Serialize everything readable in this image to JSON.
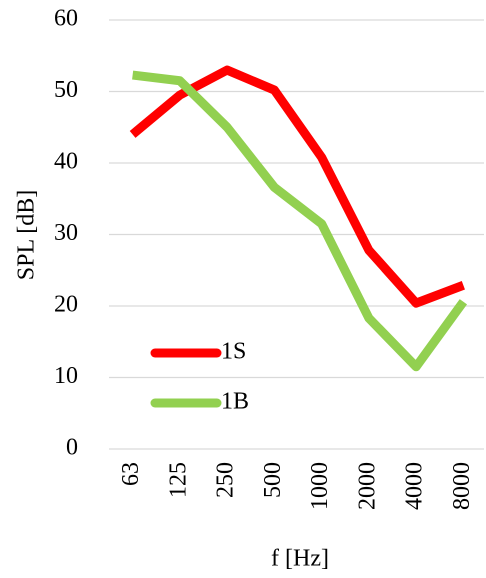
{
  "chart_data": {
    "type": "line",
    "categories": [
      "63",
      "125",
      "250",
      "500",
      "1000",
      "2000",
      "4000",
      "8000"
    ],
    "series": [
      {
        "name": "1S",
        "color": "#ff0000",
        "values": [
          44,
          49.5,
          53,
          50.2,
          40.8,
          27.8,
          20.4,
          22.9
        ]
      },
      {
        "name": "1B",
        "color": "#92d050",
        "values": [
          52.3,
          51.5,
          45,
          36.6,
          31.5,
          18.3,
          11.5,
          20.6
        ]
      }
    ],
    "xlabel": "f [Hz]",
    "ylabel": "SPL [dB]",
    "ylim": [
      0,
      60
    ],
    "yticks": [
      0,
      10,
      20,
      30,
      40,
      50,
      60
    ],
    "grid": true,
    "legend": "lower left"
  }
}
